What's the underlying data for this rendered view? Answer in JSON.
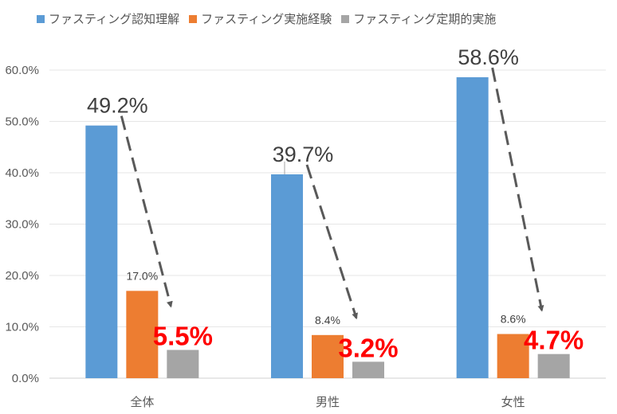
{
  "chart_data": {
    "type": "bar",
    "categories": [
      "全体",
      "男性",
      "女性"
    ],
    "series": [
      {
        "name": "ファスティング認知理解",
        "values": [
          49.2,
          39.7,
          58.6
        ],
        "color": "#5b9bd5",
        "labels": [
          "49.2%",
          "39.7%",
          "58.6%"
        ]
      },
      {
        "name": "ファスティング実施経験",
        "values": [
          17.0,
          8.4,
          8.6
        ],
        "color": "#ed7d31",
        "labels": [
          "17.0%",
          "8.4%",
          "8.6%"
        ]
      },
      {
        "name": "ファスティング定期的実施",
        "values": [
          5.5,
          3.2,
          4.7
        ],
        "color": "#a5a5a5",
        "labels": [
          "5.5%",
          "3.2%",
          "4.7%"
        ]
      }
    ],
    "ylim": [
      0,
      60
    ],
    "yticks": [
      "0.0%",
      "10.0%",
      "20.0%",
      "30.0%",
      "40.0%",
      "50.0%",
      "60.0%"
    ],
    "grid": true,
    "legend_position": "top",
    "annotations": "dashed arrows from first-series bar to third-series bar in each group",
    "annotation_color": "#595959",
    "highlight_color": "#ff0000"
  }
}
